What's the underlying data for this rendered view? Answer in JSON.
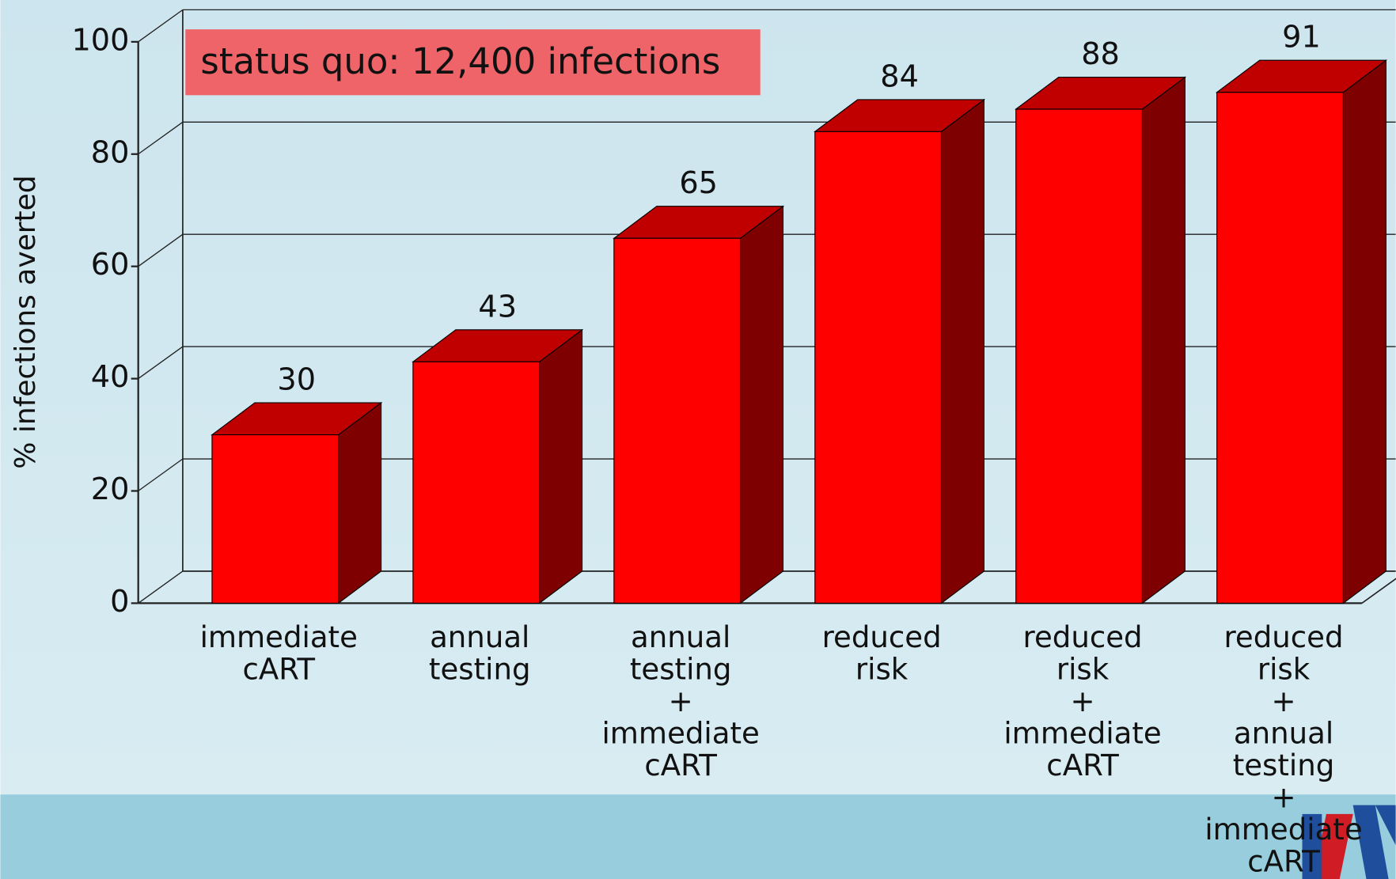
{
  "chart_data": {
    "type": "bar3d",
    "y_label": "% infections averted",
    "annotation": "status quo: 12,400 infections",
    "categories": [
      [
        "immediate",
        "cART"
      ],
      [
        "annual",
        "testing"
      ],
      [
        "annual",
        "testing",
        "+",
        "immediate",
        "cART"
      ],
      [
        "reduced",
        "risk"
      ],
      [
        "reduced",
        "risk",
        "+",
        "immediate",
        "cART"
      ],
      [
        "reduced",
        "risk",
        "+",
        "annual",
        "testing",
        "+",
        "immediate",
        "cART"
      ]
    ],
    "values": [
      30,
      43,
      65,
      84,
      88,
      91
    ],
    "colors": {
      "front": "#ff0000",
      "top": "#c00000",
      "side": "#7f0000"
    },
    "ylim": [
      0,
      100
    ],
    "yticks": [
      0,
      20,
      40,
      60,
      80,
      100
    ],
    "grid": true
  }
}
